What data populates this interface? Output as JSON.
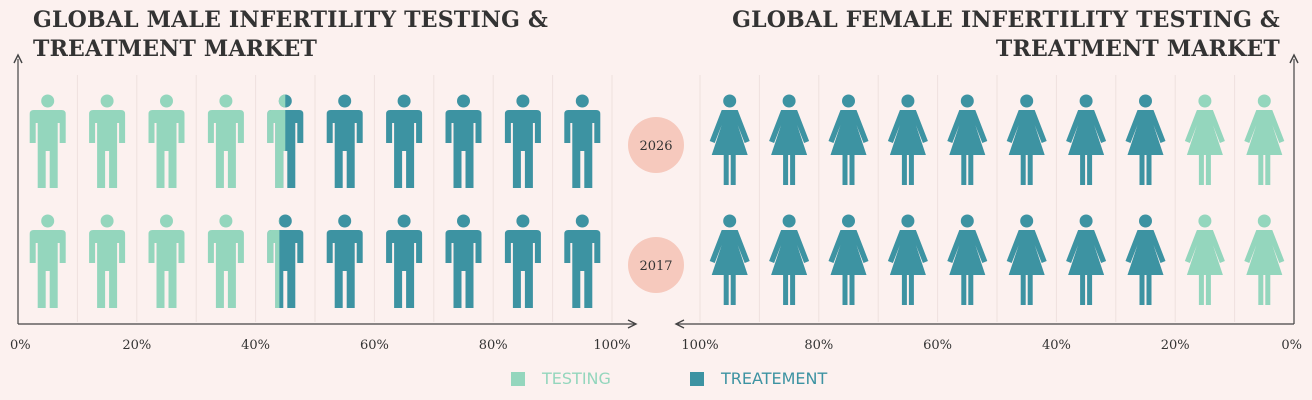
{
  "chart_data": [
    {
      "type": "pictograph",
      "title": "GLOBAL MALE INFERTILITY TESTING & TREATMENT MARKET",
      "icon": "male-figure",
      "x_ticks": [
        "0%",
        "20%",
        "40%",
        "60%",
        "80%",
        "100%"
      ],
      "xlim": [
        0,
        100
      ],
      "axis_direction": "left-to-right",
      "rows": [
        {
          "year": "2026",
          "series": [
            {
              "name": "TESTING",
              "value": 45
            },
            {
              "name": "TREATEMENT",
              "value": 55
            }
          ]
        },
        {
          "year": "2017",
          "series": [
            {
              "name": "TESTING",
              "value": 44
            },
            {
              "name": "TREATEMENT",
              "value": 56
            }
          ]
        }
      ]
    },
    {
      "type": "pictograph",
      "title": "GLOBAL FEMALE INFERTILITY TESTING & TREATMENT MARKET",
      "icon": "female-figure",
      "x_ticks": [
        "100%",
        "80%",
        "60%",
        "40%",
        "20%",
        "0%"
      ],
      "xlim": [
        100,
        0
      ],
      "axis_direction": "right-to-left",
      "rows": [
        {
          "year": "2026",
          "series": [
            {
              "name": "TREATEMENT",
              "value": 80
            },
            {
              "name": "TESTING",
              "value": 20
            }
          ]
        },
        {
          "year": "2017",
          "series": [
            {
              "name": "TREATEMENT",
              "value": 80
            },
            {
              "name": "TESTING",
              "value": 20
            }
          ]
        }
      ]
    }
  ],
  "titles": {
    "male": "GLOBAL MALE INFERTILITY TESTING & TREATMENT MARKET",
    "female": "GLOBAL FEMALE INFERTILITY TESTING & TREATMENT MARKET"
  },
  "years": [
    "2026",
    "2017"
  ],
  "legend": [
    {
      "label": "TESTING",
      "color": "#94d6bd"
    },
    {
      "label": "TREATEMENT",
      "color": "#3d93a2"
    }
  ],
  "colors": {
    "testing": "#94d6bd",
    "treatment": "#3d93a2",
    "year_badge": "#f6c9bd",
    "axis": "#444444",
    "grid": "#eee1de"
  }
}
